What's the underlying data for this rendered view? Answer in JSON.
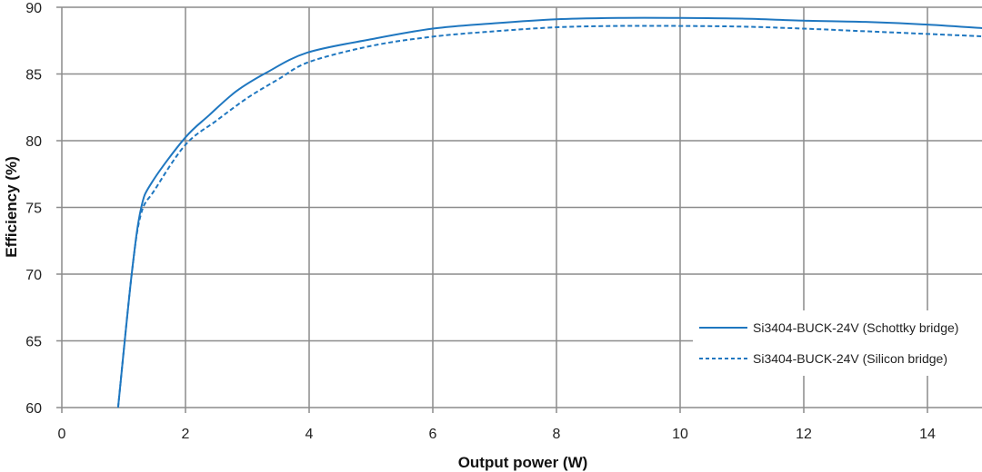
{
  "chart_data": {
    "type": "line",
    "title": "",
    "xlabel": "Output power (W)",
    "ylabel": "Efficiency (%)",
    "xlim": [
      0,
      15
    ],
    "ylim": [
      60,
      90
    ],
    "xticks": [
      0,
      2,
      4,
      6,
      8,
      10,
      12,
      14
    ],
    "yticks": [
      60,
      65,
      70,
      75,
      80,
      85,
      90
    ],
    "grid": true,
    "legend_position": "bottom-right",
    "color": "#1f77c0",
    "series": [
      {
        "name": "Si3404-BUCK-24V (Schottky bridge)",
        "style": "solid",
        "x": [
          0.91,
          1.13,
          1.28,
          1.46,
          1.99,
          2.38,
          2.82,
          3.31,
          3.97,
          5,
          6,
          7,
          8,
          9,
          10,
          11,
          12,
          13,
          14,
          15
        ],
        "y": [
          60,
          70,
          74.9,
          76.9,
          80.2,
          81.9,
          83.7,
          85.1,
          86.6,
          87.6,
          88.4,
          88.8,
          89.1,
          89.2,
          89.2,
          89.15,
          89.0,
          88.9,
          88.7,
          88.4
        ]
      },
      {
        "name": "Si3404-BUCK-24V (Silicon bridge)",
        "style": "dashed",
        "x": [
          0.91,
          1.13,
          1.28,
          1.5,
          2,
          2.5,
          3,
          3.5,
          4,
          5,
          6,
          7,
          8,
          9,
          10,
          11,
          12,
          13,
          14,
          15
        ],
        "y": [
          60,
          70,
          74.5,
          76.3,
          79.7,
          81.5,
          83.2,
          84.6,
          85.9,
          87.1,
          87.8,
          88.2,
          88.5,
          88.6,
          88.6,
          88.55,
          88.4,
          88.2,
          88.0,
          87.8
        ]
      }
    ]
  }
}
